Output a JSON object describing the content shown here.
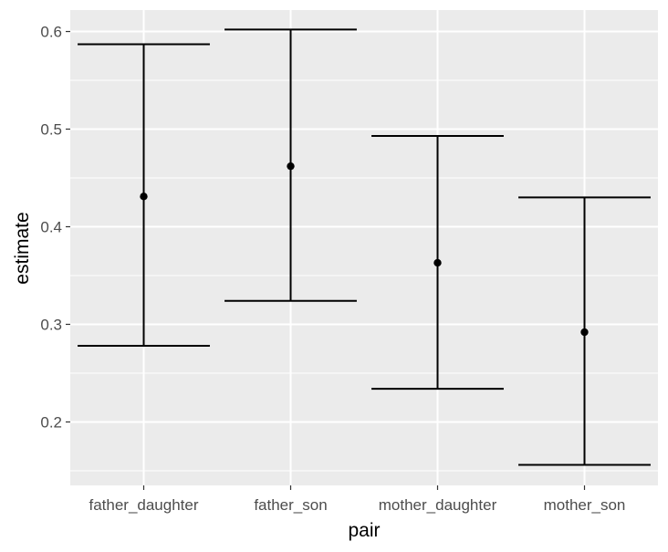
{
  "chart_data": {
    "type": "errorbar",
    "xlabel": "pair",
    "ylabel": "estimate",
    "categories": [
      "father_daughter",
      "father_son",
      "mother_daughter",
      "mother_son"
    ],
    "estimate": [
      0.431,
      0.462,
      0.363,
      0.292
    ],
    "lower": [
      0.278,
      0.324,
      0.234,
      0.156
    ],
    "upper": [
      0.587,
      0.602,
      0.493,
      0.43
    ],
    "ylim": [
      0.135,
      0.622
    ],
    "yticks": [
      0.2,
      0.3,
      0.4,
      0.5,
      0.6
    ],
    "ytick_labels": [
      "0.2",
      "0.3",
      "0.4",
      "0.5",
      "0.6"
    ],
    "grid": true,
    "colors": {
      "panel": "#ebebeb",
      "grid": "#ffffff",
      "mark": "#000000",
      "tick_text": "#4d4d4d"
    }
  }
}
